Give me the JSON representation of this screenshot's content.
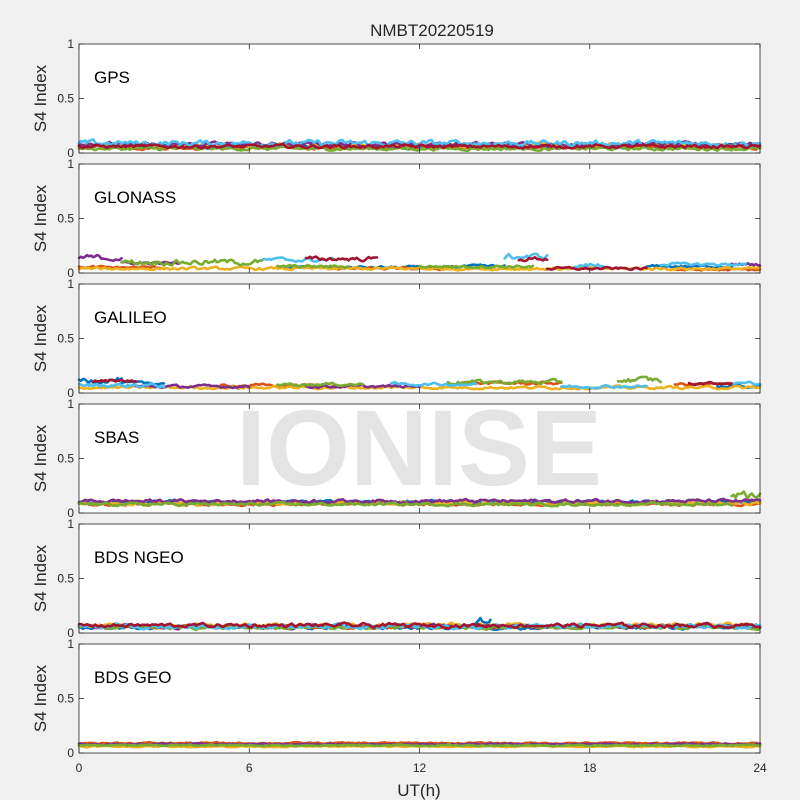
{
  "figure": {
    "title": "NMBT20220519",
    "watermark": "IONISE",
    "xlabel": "UT(h)",
    "xticks": [
      "0",
      "6",
      "12",
      "18",
      "24"
    ],
    "xlim": [
      0,
      24
    ]
  },
  "chart_data": [
    {
      "type": "scatter",
      "panel_label": "GPS",
      "ylabel": "S4 Index",
      "ylim": [
        0,
        1
      ],
      "yticks": [
        "0",
        "0.5",
        "1"
      ],
      "series": [
        {
          "color": "#0072BD",
          "segments": [
            [
              0,
              24,
              0.06,
              0.015
            ]
          ]
        },
        {
          "color": "#D95319",
          "segments": [
            [
              0,
              24,
              0.05,
              0.012
            ]
          ]
        },
        {
          "color": "#EDB120",
          "segments": [
            [
              0,
              24,
              0.07,
              0.014
            ]
          ]
        },
        {
          "color": "#7E2F8E",
          "segments": [
            [
              0,
              24,
              0.08,
              0.015
            ]
          ]
        },
        {
          "color": "#77AC30",
          "segments": [
            [
              0,
              24,
              0.04,
              0.012
            ]
          ]
        },
        {
          "color": "#4DBEEE",
          "segments": [
            [
              0,
              24,
              0.09,
              0.02
            ]
          ]
        },
        {
          "color": "#A2142F",
          "segments": [
            [
              0,
              24,
              0.06,
              0.012
            ]
          ]
        }
      ]
    },
    {
      "type": "scatter",
      "panel_label": "GLONASS",
      "ylabel": "S4 Index",
      "ylim": [
        0,
        1
      ],
      "yticks": [
        "0",
        "0.5",
        "1"
      ],
      "series": [
        {
          "color": "#0072BD",
          "segments": [
            [
              7,
              12,
              0.05,
              0.01
            ],
            [
              13,
              15,
              0.06,
              0.01
            ],
            [
              20,
              23,
              0.06,
              0.01
            ]
          ]
        },
        {
          "color": "#D95319",
          "segments": [
            [
              0,
              3,
              0.05,
              0.01
            ],
            [
              9,
              13,
              0.04,
              0.008
            ],
            [
              21,
              24,
              0.03,
              0.008
            ]
          ]
        },
        {
          "color": "#EDB120",
          "segments": [
            [
              0,
              24,
              0.04,
              0.01
            ]
          ]
        },
        {
          "color": "#7E2F8E",
          "segments": [
            [
              0,
              1.5,
              0.14,
              0.02
            ],
            [
              1.5,
              3.5,
              0.09,
              0.01
            ],
            [
              23,
              24,
              0.08,
              0.01
            ]
          ]
        },
        {
          "color": "#77AC30",
          "segments": [
            [
              1.5,
              6.5,
              0.1,
              0.02
            ],
            [
              7,
              9.5,
              0.06,
              0.01
            ],
            [
              12,
              16,
              0.06,
              0.01
            ]
          ]
        },
        {
          "color": "#4DBEEE",
          "segments": [
            [
              6.5,
              9,
              0.12,
              0.015
            ],
            [
              15,
              16.5,
              0.15,
              0.02
            ],
            [
              17.5,
              18.5,
              0.07,
              0.02
            ],
            [
              20.5,
              23.5,
              0.08,
              0.01
            ]
          ]
        },
        {
          "color": "#A2142F",
          "segments": [
            [
              8,
              10.5,
              0.13,
              0.015
            ],
            [
              15.5,
              16.5,
              0.13,
              0.015
            ],
            [
              16.5,
              20,
              0.04,
              0.01
            ]
          ]
        }
      ]
    },
    {
      "type": "scatter",
      "panel_label": "GALILEO",
      "ylabel": "S4 Index",
      "ylim": [
        0,
        1
      ],
      "yticks": [
        "0",
        "0.5",
        "1"
      ],
      "series": [
        {
          "color": "#0072BD",
          "segments": [
            [
              0,
              1.5,
              0.12,
              0.02
            ],
            [
              1.5,
              3,
              0.09,
              0.01
            ],
            [
              22.5,
              24,
              0.06,
              0.01
            ]
          ]
        },
        {
          "color": "#D95319",
          "segments": [
            [
              5,
              9,
              0.07,
              0.01
            ],
            [
              13.5,
              17,
              0.09,
              0.01
            ],
            [
              21,
              23,
              0.08,
              0.01
            ]
          ]
        },
        {
          "color": "#EDB120",
          "segments": [
            [
              0,
              24,
              0.05,
              0.01
            ]
          ]
        },
        {
          "color": "#7E2F8E",
          "segments": [
            [
              2,
              6,
              0.06,
              0.01
            ],
            [
              8,
              12,
              0.06,
              0.01
            ]
          ]
        },
        {
          "color": "#77AC30",
          "segments": [
            [
              7,
              10,
              0.08,
              0.01
            ],
            [
              13,
              17,
              0.1,
              0.015
            ],
            [
              19,
              20.5,
              0.12,
              0.02
            ]
          ]
        },
        {
          "color": "#4DBEEE",
          "segments": [
            [
              0,
              3,
              0.07,
              0.015
            ],
            [
              11,
              14,
              0.08,
              0.01
            ],
            [
              17,
              20,
              0.06,
              0.01
            ],
            [
              23,
              24,
              0.09,
              0.01
            ]
          ]
        },
        {
          "color": "#A2142F",
          "segments": [
            [
              0.5,
              2,
              0.11,
              0.01
            ],
            [
              21.5,
              23,
              0.09,
              0.01
            ]
          ]
        }
      ]
    },
    {
      "type": "scatter",
      "panel_label": "SBAS",
      "ylabel": "S4 Index",
      "ylim": [
        0,
        1
      ],
      "yticks": [
        "0",
        "0.5",
        "1"
      ],
      "series": [
        {
          "color": "#0072BD",
          "segments": [
            [
              0,
              24,
              0.1,
              0.012
            ]
          ]
        },
        {
          "color": "#D95319",
          "segments": [
            [
              0,
              24,
              0.08,
              0.01
            ]
          ]
        },
        {
          "color": "#EDB120",
          "segments": [
            [
              0,
              24,
              0.09,
              0.012
            ]
          ]
        },
        {
          "color": "#7E2F8E",
          "segments": [
            [
              0,
              24,
              0.11,
              0.012
            ]
          ]
        },
        {
          "color": "#77AC30",
          "segments": [
            [
              0,
              23,
              0.08,
              0.01
            ],
            [
              23,
              24,
              0.17,
              0.03
            ]
          ]
        }
      ]
    },
    {
      "type": "scatter",
      "panel_label": "BDS NGEO",
      "ylabel": "S4 Index",
      "ylim": [
        0,
        1
      ],
      "yticks": [
        "0",
        "0.5",
        "1"
      ],
      "series": [
        {
          "color": "#0072BD",
          "segments": [
            [
              0,
              24,
              0.05,
              0.012
            ],
            [
              14,
              14.5,
              0.12,
              0.03
            ]
          ]
        },
        {
          "color": "#D95319",
          "segments": [
            [
              0,
              24,
              0.06,
              0.012
            ]
          ]
        },
        {
          "color": "#EDB120",
          "segments": [
            [
              0,
              24,
              0.07,
              0.015
            ]
          ]
        },
        {
          "color": "#7E2F8E",
          "segments": [
            [
              0,
              24,
              0.06,
              0.014
            ]
          ]
        },
        {
          "color": "#77AC30",
          "segments": [
            [
              0,
              24,
              0.05,
              0.012
            ]
          ]
        },
        {
          "color": "#4DBEEE",
          "segments": [
            [
              0,
              24,
              0.06,
              0.015
            ]
          ]
        },
        {
          "color": "#A2142F",
          "segments": [
            [
              0,
              24,
              0.07,
              0.014
            ]
          ]
        }
      ]
    },
    {
      "type": "scatter",
      "panel_label": "BDS GEO",
      "ylabel": "S4 Index",
      "ylim": [
        0,
        1
      ],
      "yticks": [
        "0",
        "0.5",
        "1"
      ],
      "series": [
        {
          "color": "#0072BD",
          "segments": [
            [
              0,
              24,
              0.07,
              0.005
            ]
          ]
        },
        {
          "color": "#D95319",
          "segments": [
            [
              0,
              24,
              0.09,
              0.006
            ]
          ]
        },
        {
          "color": "#EDB120",
          "segments": [
            [
              0,
              24,
              0.06,
              0.005
            ]
          ]
        },
        {
          "color": "#7E2F8E",
          "segments": [
            [
              0,
              24,
              0.08,
              0.005
            ]
          ]
        },
        {
          "color": "#77AC30",
          "segments": [
            [
              0,
              24,
              0.07,
              0.005
            ]
          ]
        }
      ]
    }
  ]
}
